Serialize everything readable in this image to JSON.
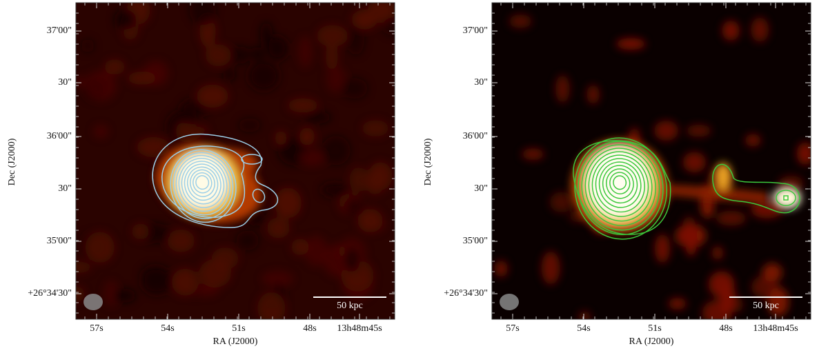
{
  "panels": [
    {
      "xticks": [
        "57s",
        "54s",
        "51s",
        "48s",
        "13h48m45s"
      ],
      "yticks": [
        "37'00\"",
        "30\"",
        "36'00\"",
        "30\"",
        "35'00\"",
        "+26°34'30\""
      ],
      "xlabel": "RA (J2000)",
      "ylabel": "Dec (J2000)",
      "scalebar": "50 kpc"
    },
    {
      "xticks": [
        "57s",
        "54s",
        "51s",
        "48s",
        "13h48m45s"
      ],
      "yticks": [
        "37'00\"",
        "30\"",
        "36'00\"",
        "30\"",
        "35'00\"",
        "+26°34'30\""
      ],
      "xlabel": "RA (J2000)",
      "ylabel": "Dec (J2000)",
      "scalebar": "50 kpc"
    }
  ]
}
